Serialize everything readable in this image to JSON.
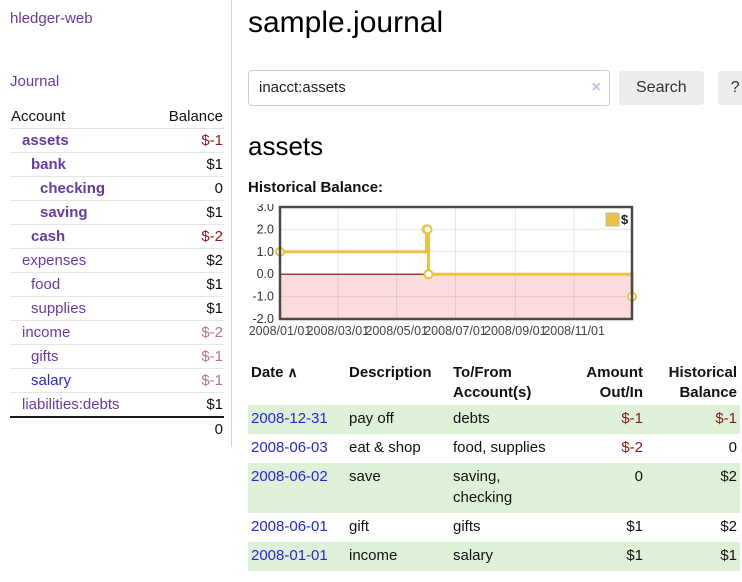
{
  "app": {
    "title": "hledger-web",
    "nav_journal": "Journal"
  },
  "icons": {
    "clear_icon": "×",
    "sort_asc_icon": "∧",
    "legend_swatch_label": "$"
  },
  "sidebar": {
    "header": {
      "account": "Account",
      "balance": "Balance"
    },
    "accounts": [
      {
        "name": "assets",
        "balance": "$-1",
        "depth": 1,
        "bold": true,
        "name_color": "purple",
        "balance_tone": "neg-strong"
      },
      {
        "name": "bank",
        "balance": "$1",
        "depth": 2,
        "bold": true,
        "name_color": "purple",
        "balance_tone": "normal"
      },
      {
        "name": "checking",
        "balance": "0",
        "depth": 3,
        "bold": true,
        "name_color": "purple",
        "balance_tone": "normal"
      },
      {
        "name": "saving",
        "balance": "$1",
        "depth": 3,
        "bold": true,
        "name_color": "purple",
        "balance_tone": "normal"
      },
      {
        "name": "cash",
        "balance": "$-2",
        "depth": 2,
        "bold": true,
        "name_color": "purple",
        "balance_tone": "neg-strong"
      },
      {
        "name": "expenses",
        "balance": "$2",
        "depth": 1,
        "bold": false,
        "name_color": "purple",
        "balance_tone": "normal"
      },
      {
        "name": "food",
        "balance": "$1",
        "depth": 2,
        "bold": false,
        "name_color": "purple",
        "balance_tone": "normal"
      },
      {
        "name": "supplies",
        "balance": "$1",
        "depth": 2,
        "bold": false,
        "name_color": "purple",
        "balance_tone": "normal"
      },
      {
        "name": "income",
        "balance": "$-2",
        "depth": 1,
        "bold": false,
        "name_color": "purple",
        "balance_tone": "neg-weak"
      },
      {
        "name": "gifts",
        "balance": "$-1",
        "depth": 2,
        "bold": false,
        "name_color": "purple",
        "balance_tone": "neg-weak"
      },
      {
        "name": "salary",
        "balance": "$-1",
        "depth": 2,
        "bold": false,
        "name_color": "blue",
        "balance_tone": "neg-weak"
      },
      {
        "name": "liabilities:debts",
        "balance": "$1",
        "depth": 1,
        "bold": false,
        "name_color": "purple",
        "balance_tone": "normal"
      }
    ],
    "total": "0"
  },
  "main": {
    "title": "sample.journal",
    "search": {
      "value": "inacct:assets",
      "button_label": "Search",
      "help_label": "?"
    },
    "account_heading": "assets",
    "chart_label": "Historical Balance:"
  },
  "chart_data": {
    "type": "line",
    "style": "step-after",
    "title": "Historical Balance",
    "xlabel": "",
    "ylabel": "",
    "xlim": [
      "2008-01-01",
      "2008-12-31"
    ],
    "ylim": [
      -2,
      3
    ],
    "grid": true,
    "legend_position": "top-right",
    "series": [
      {
        "name": "$",
        "color": "#edc240",
        "points": [
          [
            "2008-01-01",
            1
          ],
          [
            "2008-06-01",
            2
          ],
          [
            "2008-06-02",
            2
          ],
          [
            "2008-06-03",
            0
          ],
          [
            "2008-12-31",
            -1
          ]
        ]
      }
    ],
    "y_ticks": [
      {
        "v": 3,
        "label": "3.0"
      },
      {
        "v": 2,
        "label": "2.0"
      },
      {
        "v": 1,
        "label": "1.0"
      },
      {
        "v": 0,
        "label": "0.0"
      },
      {
        "v": -1,
        "label": "-1.0"
      },
      {
        "v": -2,
        "label": "-2.0"
      }
    ],
    "x_ticks": [
      {
        "date": "2008-01-01",
        "label": "2008/01/01"
      },
      {
        "date": "2008-03-01",
        "label": "2008/03/01"
      },
      {
        "date": "2008-05-01",
        "label": "2008/05/01"
      },
      {
        "date": "2008-07-01",
        "label": "2008/07/01"
      },
      {
        "date": "2008-09-01",
        "label": "2008/09/01"
      },
      {
        "date": "2008-11-01",
        "label": "2008/11/01"
      }
    ],
    "negative_region_color": "#fadcdc",
    "zero_line_color": "#8b0000",
    "border_color": "#4a4a4a"
  },
  "register": {
    "headers": {
      "date": "Date",
      "description": "Description",
      "accounts": "To/From Account(s)",
      "amount": "Amount Out/In",
      "balance": "Historical Balance"
    },
    "rows": [
      {
        "date": "2008-12-31",
        "description": "pay off",
        "accounts": "debts",
        "amount": "$-1",
        "balance": "$-1"
      },
      {
        "date": "2008-06-03",
        "description": "eat & shop",
        "accounts": "food, supplies",
        "amount": "$-2",
        "balance": "0"
      },
      {
        "date": "2008-06-02",
        "description": "save",
        "accounts": "saving, checking",
        "amount": "0",
        "balance": "$2"
      },
      {
        "date": "2008-06-01",
        "description": "gift",
        "accounts": "gifts",
        "amount": "$1",
        "balance": "$2"
      },
      {
        "date": "2008-01-01",
        "description": "income",
        "accounts": "salary",
        "amount": "$1",
        "balance": "$1"
      }
    ]
  }
}
